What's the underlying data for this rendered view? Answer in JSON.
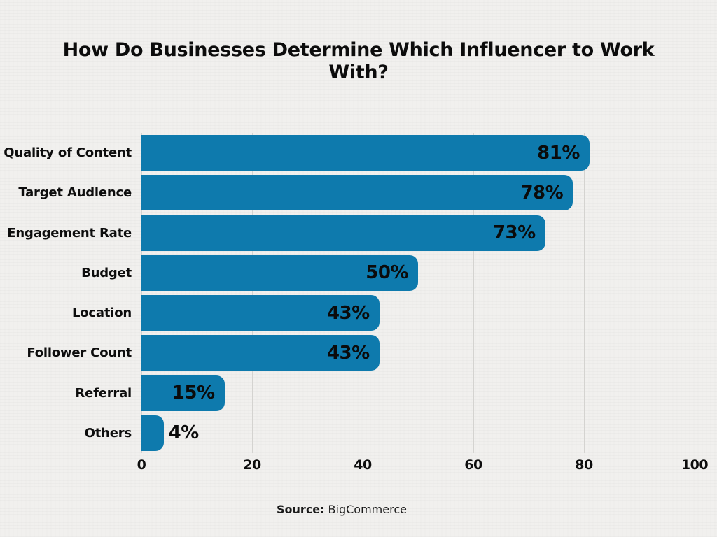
{
  "chart_data": {
    "type": "bar",
    "orientation": "horizontal",
    "title": "How Do Businesses Determine Which Influencer to Work With?",
    "categories": [
      "Quality of Content",
      "Target Audience",
      "Engagement Rate",
      "Budget",
      "Location",
      "Follower Count",
      "Referral",
      "Others"
    ],
    "values": [
      81,
      78,
      73,
      50,
      43,
      43,
      15,
      4
    ],
    "value_labels": [
      "81%",
      "78%",
      "73%",
      "50%",
      "43%",
      "43%",
      "15%",
      "4%"
    ],
    "xlabel": "",
    "ylabel": "",
    "xlim": [
      0,
      100
    ],
    "x_ticks": [
      0,
      20,
      40,
      60,
      80,
      100
    ],
    "grid": "vertical",
    "legend": "none"
  },
  "source": {
    "label": "Source:",
    "name": "BigCommerce"
  },
  "colors": {
    "bar": "#0e7aad",
    "background": "#f1f0ee",
    "gridline": "#d4d3d0",
    "text": "#0d0d0d"
  }
}
